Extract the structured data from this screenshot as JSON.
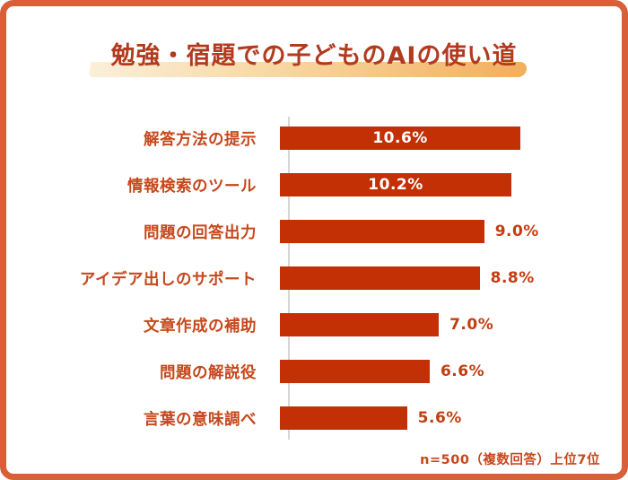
{
  "title": "勉強・宿題での子どものAIの使い道",
  "footnote": "n=500（複数回答）上位7位",
  "colors": {
    "border": "#D85F38",
    "title_text": "#B23A1E",
    "highlight_start": "#FBEFD9",
    "highlight_mid": "#F7D6A0",
    "highlight_end": "#F2AE5E",
    "bar": "#C33005",
    "category_label": "#C6481C",
    "value_inside": "#FFFFFF",
    "value_outside": "#C33E12",
    "axis_line": "#D6D6D6"
  },
  "chart_data": {
    "type": "bar",
    "orientation": "horizontal",
    "title": "勉強・宿題での子どものAIの使い道",
    "categories": [
      "解答方法の提示",
      "情報検索のツール",
      "問題の回答出力",
      "アイデア出しのサポート",
      "文章作成の補助",
      "問題の解説役",
      "言葉の意味調べ"
    ],
    "values": [
      10.6,
      10.2,
      9.0,
      8.8,
      7.0,
      6.6,
      5.6
    ],
    "value_labels": [
      "10.6%",
      "10.2%",
      "9.0%",
      "8.8%",
      "7.0%",
      "6.6%",
      "5.6%"
    ],
    "value_label_position": [
      "inside",
      "inside",
      "outside",
      "outside",
      "outside",
      "outside",
      "outside"
    ],
    "xlabel": "",
    "ylabel": "",
    "grid": false,
    "legend": false,
    "note": "n=500（複数回答）上位7位"
  }
}
